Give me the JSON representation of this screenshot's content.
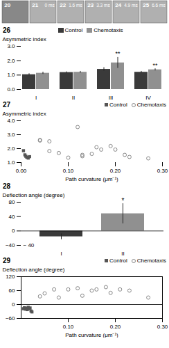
{
  "chart_data": [
    {
      "type": "image_strip",
      "categories": [
        "20",
        "21",
        "22",
        "23",
        "24",
        "25"
      ],
      "annotations": [
        null,
        "0 ms",
        "1.6 ms",
        "3.3 ms",
        "4.9 ms",
        "6.6 ms"
      ],
      "colors": [
        "#888888",
        "#b0b0b0",
        "#b0b0b0",
        "#b0b0b0",
        "#b0b0b0",
        "#b0b0b0"
      ],
      "tick_labels": false
    },
    {
      "type": "bar",
      "title": "26",
      "categories": [
        "I",
        "II",
        "III",
        "IV"
      ],
      "series": [
        {
          "name": "Control",
          "color": "#3a3a3a",
          "values": [
            1.03,
            1.18,
            1.4,
            1.2
          ],
          "errors": [
            0.07,
            0.05,
            0.12,
            0.06
          ]
        },
        {
          "name": "Chemotaxis",
          "color": "#909090",
          "values": [
            1.13,
            1.2,
            1.85,
            1.37
          ],
          "errors": [
            0.08,
            0.06,
            0.38,
            0.07
          ]
        }
      ],
      "ylabel": "Asymmetric index",
      "ylim": [
        0,
        3.0
      ],
      "yticks": [
        0,
        1,
        2,
        3
      ],
      "legend": "upper center",
      "annotations": [
        {
          "text": "**",
          "category": "III",
          "series": "Chemotaxis"
        },
        {
          "text": "**",
          "category": "IV",
          "series": "Chemotaxis"
        }
      ]
    },
    {
      "type": "scatter",
      "title": "27",
      "xlabel": "Path curvature (μm⁻¹)",
      "ylabel": "Asymmetric index",
      "xlim": [
        0,
        0.3
      ],
      "xticks": [
        0,
        0.1,
        0.2,
        0.3
      ],
      "ylim": [
        1,
        4
      ],
      "yticks": [
        1,
        2,
        3,
        4
      ],
      "legend": "upper right",
      "series": [
        {
          "name": "Control",
          "color": "#555555",
          "marker": "square",
          "x": [
            0.005,
            0.008,
            0.01,
            0.012,
            0.015,
            0.018
          ],
          "values": [
            1.85,
            1.55,
            1.45,
            1.38,
            1.32,
            1.42
          ]
        },
        {
          "name": "Chemotaxis",
          "color": "#888888",
          "marker": "open_circle",
          "x": [
            0.04,
            0.04,
            0.06,
            0.06,
            0.08,
            0.1,
            0.12,
            0.13,
            0.13,
            0.15,
            0.16,
            0.17,
            0.19,
            0.2,
            0.22,
            0.23,
            0.27
          ],
          "values": [
            2.58,
            2.62,
            1.82,
            2.52,
            1.68,
            1.35,
            3.55,
            1.45,
            1.55,
            1.62,
            2.1,
            1.93,
            2.18,
            1.93,
            1.55,
            1.4,
            1.3
          ]
        }
      ]
    },
    {
      "type": "bar",
      "title": "28",
      "categories": [
        "I",
        "II"
      ],
      "values": [
        -16,
        48
      ],
      "errors": [
        8,
        28
      ],
      "colors": [
        "#3a3a3a",
        "#909090"
      ],
      "ylabel": "Deflection angle (degree)",
      "ylim": [
        -40,
        80
      ],
      "yticks": [
        -40,
        0,
        40,
        80
      ],
      "annotations": [
        {
          "text": "*",
          "category": "II"
        },
        {
          "text": "− 40",
          "y": -40
        }
      ]
    },
    {
      "type": "scatter",
      "title": "29",
      "xlabel": "Path curvature (μm⁻¹)",
      "ylabel": "Deflection angle (degree)",
      "xlim": [
        0,
        0.3
      ],
      "xticks": [
        0.1,
        0.2,
        0.3
      ],
      "ylim": [
        -60,
        120
      ],
      "yticks": [
        -60,
        0,
        60,
        120
      ],
      "legend": "upper right",
      "series": [
        {
          "name": "Control",
          "color": "#555555",
          "marker": "square",
          "x": [
            0.005,
            0.007,
            0.009,
            0.011,
            0.013,
            0.015,
            0.017,
            0.019,
            0.021,
            0.023
          ],
          "values": [
            -18,
            -14,
            -20,
            -16,
            -22,
            -12,
            -18,
            -15,
            -28,
            -32
          ]
        },
        {
          "name": "Chemotaxis",
          "color": "#888888",
          "marker": "open_circle",
          "x": [
            0.04,
            0.05,
            0.07,
            0.08,
            0.1,
            0.12,
            0.13,
            0.15,
            0.16,
            0.18,
            0.19,
            0.21,
            0.23,
            0.27
          ],
          "values": [
            35,
            48,
            65,
            30,
            65,
            70,
            38,
            60,
            65,
            75,
            50,
            65,
            60,
            30
          ]
        }
      ]
    }
  ]
}
